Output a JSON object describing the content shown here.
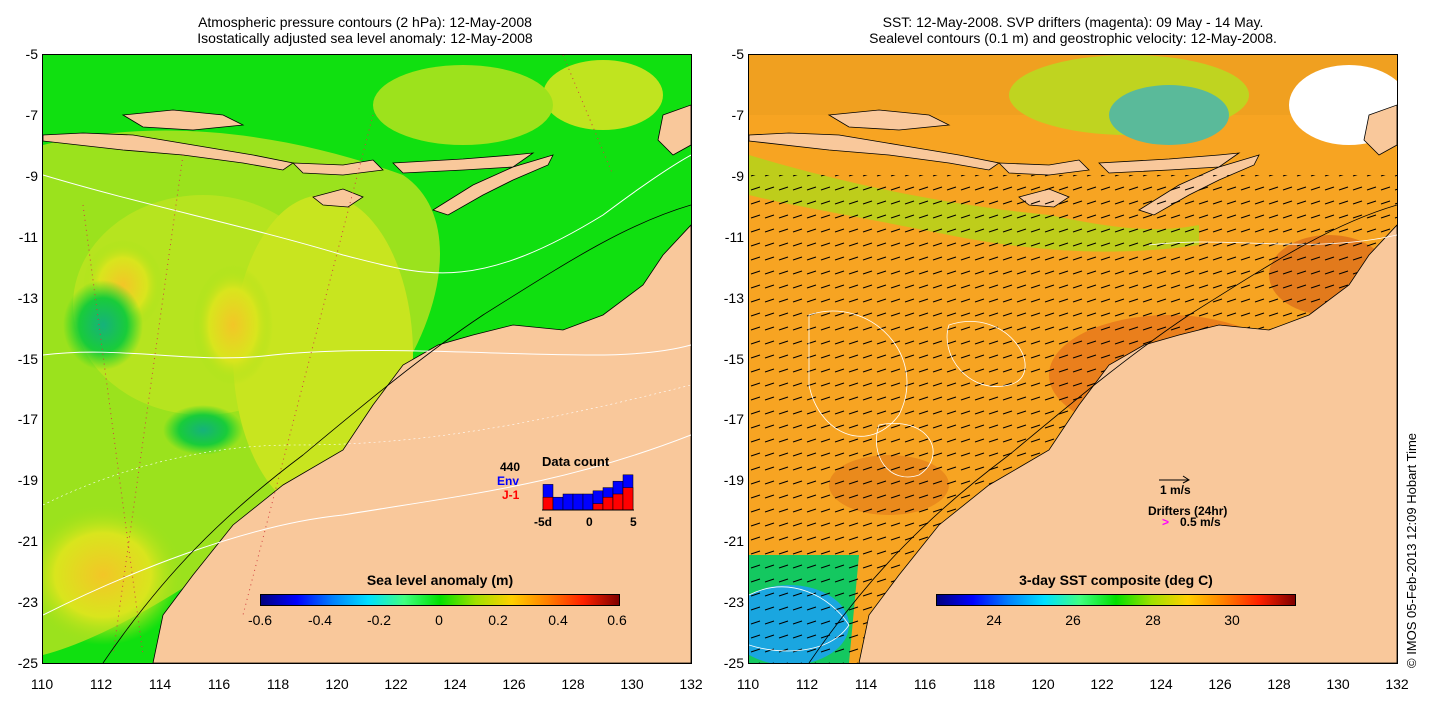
{
  "left_panel": {
    "title_line1": "Atmospheric pressure contours (2 hPa): 12-May-2008",
    "title_line2": "Isostatically adjusted sea level anomaly: 12-May-2008",
    "colorbar": {
      "title": "Sea level anomaly (m)",
      "ticks": [
        "-0.6",
        "-0.4",
        "-0.2",
        "0",
        "0.2",
        "0.4",
        "0.6"
      ],
      "range": [
        -0.6,
        0.6
      ]
    },
    "data_count": {
      "title": "Data count",
      "total": "440",
      "series1": "Env",
      "series2": "J-1",
      "x_left": "-5d",
      "x_mid": "0",
      "x_right": "5",
      "env_values": [
        8,
        4,
        5,
        5,
        5,
        6,
        7,
        9,
        11
      ],
      "j1_values": [
        4,
        0,
        0,
        0,
        0,
        2,
        4,
        5,
        7
      ],
      "env_color": "#0000ff",
      "j1_color": "#ff0000"
    }
  },
  "right_panel": {
    "title_line1": "SST: 12-May-2008. SVP drifters (magenta): 09 May - 14 May.",
    "title_line2": "Sealevel contours (0.1 m) and geostrophic velocity: 12-May-2008.",
    "colorbar": {
      "title": "3-day SST composite (deg C)",
      "ticks": [
        "24",
        "26",
        "28",
        "30"
      ],
      "range": [
        22.5,
        31.5
      ]
    },
    "velocity_legend": "1 m/s",
    "drifter_legend_title": "Drifters (24hr)",
    "drifter_legend_value": "0.5 m/s",
    "drifter_arrow_glyph": ">"
  },
  "axes": {
    "x_ticks": [
      "110",
      "112",
      "114",
      "116",
      "118",
      "120",
      "122",
      "124",
      "126",
      "128",
      "130",
      "132"
    ],
    "y_ticks": [
      "-5",
      "-7",
      "-9",
      "-11",
      "-13",
      "-15",
      "-17",
      "-19",
      "-21",
      "-23",
      "-25"
    ],
    "lon_range": [
      110,
      132
    ],
    "lat_range": [
      -25,
      -5
    ]
  },
  "credit": "© IMOS 05-Feb-2013 12:09 Hobart Time",
  "colors": {
    "land": "#f9c89b",
    "sla_mid": "#10e010",
    "sst_mid": "#f7a422"
  }
}
